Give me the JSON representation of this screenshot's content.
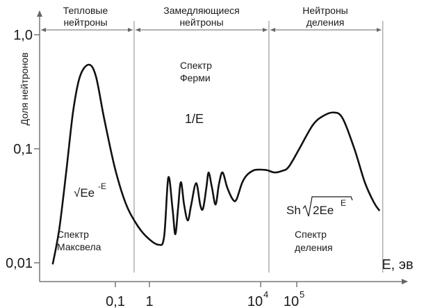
{
  "chart_data": {
    "type": "line",
    "title": "",
    "xlabel": "E, эв",
    "ylabel": "Доля нейтронов",
    "x_scale": "log",
    "y_scale": "log",
    "x_ticks": [
      {
        "log10_E": -1,
        "label": "0,1"
      },
      {
        "log10_E": 0,
        "label": "1"
      },
      {
        "log10_E": 4,
        "label": "10",
        "sup": "4"
      },
      {
        "log10_E": 5,
        "label": "10",
        "sup": "5"
      }
    ],
    "y_ticks": [
      {
        "value": 1.0,
        "label": "1,0"
      },
      {
        "value": 0.1,
        "label": "0,1"
      },
      {
        "value": 0.01,
        "label": "0,01"
      }
    ],
    "regions": [
      {
        "name": "thermal",
        "line1": "Тепловые",
        "line2": "нейтроны",
        "spectrum_line1": "Спектр",
        "spectrum_line2": "Максвела",
        "formula": "√Ee",
        "formula_sup": "-E"
      },
      {
        "name": "slowing",
        "line1": "Замедляющиеся",
        "line2": "нейтроны",
        "spectrum_line1": "Спектр",
        "spectrum_line2": "Ферми",
        "formula": "1/E"
      },
      {
        "name": "fission",
        "line1": "Нейтроны",
        "line2": "деления",
        "spectrum_line1": "Спектр",
        "spectrum_line2": "деления",
        "formula": "Sh",
        "formula_root": "2Ee",
        "formula_sup": "E"
      }
    ],
    "boundaries_log10_E": [
      -0.45,
      4.23,
      7.38
    ],
    "series": [
      {
        "name": "neutron spectrum",
        "points_log10E_fraction": [
          [
            -2.84,
            0.0097
          ],
          [
            -2.65,
            0.0196
          ],
          [
            -2.45,
            0.06
          ],
          [
            -2.24,
            0.213
          ],
          [
            -2.04,
            0.43
          ],
          [
            -1.78,
            0.547
          ],
          [
            -1.57,
            0.43
          ],
          [
            -1.33,
            0.185
          ],
          [
            -1.02,
            0.069
          ],
          [
            -0.71,
            0.034
          ],
          [
            -0.41,
            0.0226
          ],
          [
            -0.1,
            0.0171
          ],
          [
            0.33,
            0.0144
          ],
          [
            0.53,
            0.0171
          ],
          [
            0.68,
            0.056
          ],
          [
            0.83,
            0.03
          ],
          [
            0.93,
            0.0178
          ],
          [
            1.03,
            0.03
          ],
          [
            1.13,
            0.051
          ],
          [
            1.25,
            0.032
          ],
          [
            1.38,
            0.0235
          ],
          [
            1.5,
            0.032
          ],
          [
            1.68,
            0.05
          ],
          [
            1.83,
            0.032
          ],
          [
            1.93,
            0.03
          ],
          [
            2.05,
            0.046
          ],
          [
            2.13,
            0.062
          ],
          [
            2.25,
            0.0456
          ],
          [
            2.38,
            0.0325
          ],
          [
            2.5,
            0.0489
          ],
          [
            2.63,
            0.062
          ],
          [
            2.8,
            0.0456
          ],
          [
            3.0,
            0.0359
          ],
          [
            3.13,
            0.0359
          ],
          [
            3.33,
            0.05
          ],
          [
            3.5,
            0.0586
          ],
          [
            3.75,
            0.0647
          ],
          [
            4.0,
            0.0656
          ],
          [
            4.19,
            0.0647
          ],
          [
            4.38,
            0.062
          ],
          [
            4.58,
            0.0638
          ],
          [
            4.77,
            0.069
          ],
          [
            5.06,
            0.0986
          ],
          [
            5.44,
            0.161
          ],
          [
            5.73,
            0.194
          ],
          [
            6.02,
            0.208
          ],
          [
            6.27,
            0.185
          ],
          [
            6.6,
            0.0986
          ],
          [
            6.88,
            0.051
          ],
          [
            7.13,
            0.034
          ],
          [
            7.29,
            0.0286
          ]
        ]
      }
    ]
  }
}
